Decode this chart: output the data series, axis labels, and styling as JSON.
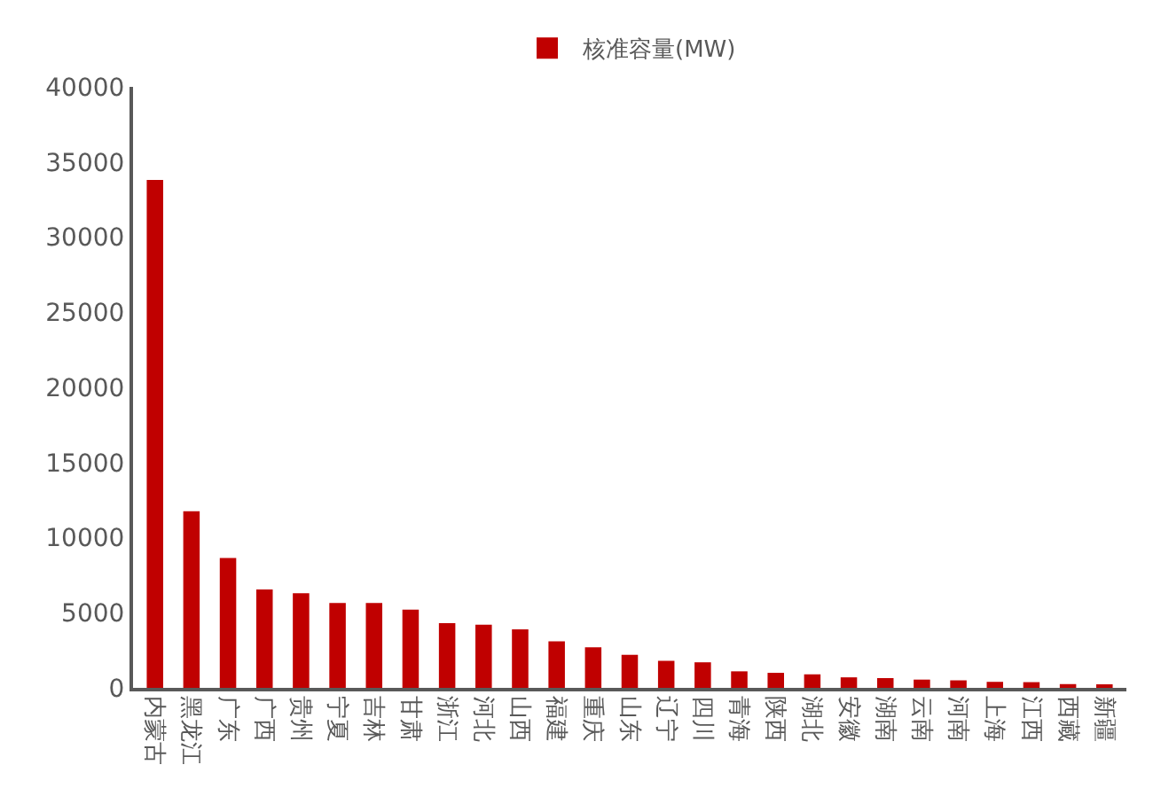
{
  "chart_data": {
    "type": "bar",
    "categories": [
      "内蒙古",
      "黑龙江",
      "广东",
      "广西",
      "贵州",
      "宁夏",
      "吉林",
      "甘肃",
      "浙江",
      "河北",
      "山西",
      "福建",
      "重庆",
      "山东",
      "辽宁",
      "四川",
      "青海",
      "陕西",
      "湖北",
      "安徽",
      "湖南",
      "云南",
      "河南",
      "上海",
      "江西",
      "西藏",
      "新疆"
    ],
    "series": [
      {
        "name": "核准容量(MW)",
        "color": "#c00000",
        "values": [
          33800,
          11750,
          8650,
          6550,
          6300,
          5650,
          5650,
          5200,
          4300,
          4200,
          3900,
          3100,
          2700,
          2200,
          1800,
          1700,
          1100,
          1000,
          900,
          700,
          650,
          550,
          500,
          400,
          380,
          250,
          150
        ]
      }
    ],
    "ylim": [
      0,
      40000
    ],
    "yticks": [
      0,
      5000,
      10000,
      15000,
      20000,
      25000,
      30000,
      35000,
      40000
    ],
    "grid": false,
    "legend": "top"
  }
}
